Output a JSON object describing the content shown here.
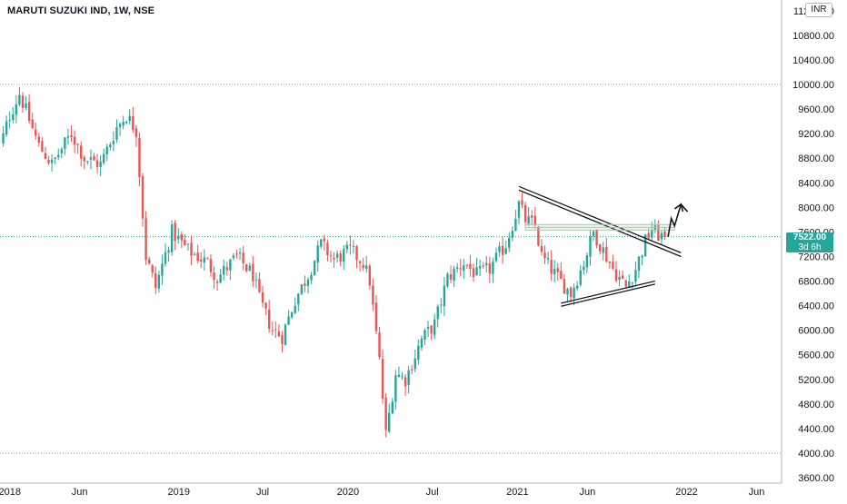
{
  "header": {
    "title": "MARUTI SUZUKI IND, 1W, NSE",
    "currency": "INR"
  },
  "price_label": {
    "value": "7522.00",
    "countdown": "3d 6h"
  },
  "colors": {
    "up": "#26a69a",
    "down": "#ef5350",
    "dotted_line": "#9598a1",
    "axis_line": "#b2b5be",
    "drawings": "#131722",
    "zone": "#a7c9a7"
  },
  "chart_data": {
    "type": "candlestick",
    "symbol": "MARUTI SUZUKI IND",
    "interval": "1W",
    "exchange": "NSE",
    "ylim": [
      3500,
      11200
    ],
    "y_ticks": [
      "11200.00",
      "10800.00",
      "10400.00",
      "10000.00",
      "9600.00",
      "9200.00",
      "8800.00",
      "8400.00",
      "8000.00",
      "7600.00",
      "7200.00",
      "6800.00",
      "6400.00",
      "6000.00",
      "5600.00",
      "5200.00",
      "4800.00",
      "4400.00",
      "4000.00",
      "3600.00"
    ],
    "x_ticks": [
      "2018",
      "Jun",
      "2019",
      "Jul",
      "2020",
      "Jul",
      "2021",
      "Jun",
      "2022",
      "Jun"
    ],
    "x_tick_dates": [
      "2018-01-01",
      "2018-06-01",
      "2019-01-01",
      "2019-07-01",
      "2020-01-01",
      "2020-07-01",
      "2021-01-01",
      "2021-06-01",
      "2022-01-01",
      "2022-06-01"
    ],
    "x_range_dates": [
      "2017-12-11",
      "2022-07-25"
    ],
    "horizontal_levels": [
      10000,
      4000
    ],
    "last_price": 7522,
    "anchors": [
      [
        "2017-12-04",
        8800
      ],
      [
        "2018-01-01",
        9500
      ],
      [
        "2018-01-22",
        9850
      ],
      [
        "2018-03-05",
        9000
      ],
      [
        "2018-04-02",
        8700
      ],
      [
        "2018-05-14",
        9200
      ],
      [
        "2018-06-11",
        8800
      ],
      [
        "2018-07-16",
        8700
      ],
      [
        "2018-08-20",
        9300
      ],
      [
        "2018-09-10",
        9500
      ],
      [
        "2018-10-01",
        9250
      ],
      [
        "2018-10-22",
        7200
      ],
      [
        "2018-11-12",
        6700
      ],
      [
        "2018-12-17",
        7600
      ],
      [
        "2019-01-21",
        7300
      ],
      [
        "2019-03-04",
        7100
      ],
      [
        "2019-03-25",
        6850
      ],
      [
        "2019-05-06",
        7200
      ],
      [
        "2019-06-10",
        6900
      ],
      [
        "2019-06-24",
        6500
      ],
      [
        "2019-07-22",
        6000
      ],
      [
        "2019-08-12",
        5900
      ],
      [
        "2019-09-09",
        6500
      ],
      [
        "2019-10-07",
        6900
      ],
      [
        "2019-11-04",
        7400
      ],
      [
        "2019-12-02",
        7150
      ],
      [
        "2020-01-06",
        7300
      ],
      [
        "2020-02-03",
        7100
      ],
      [
        "2020-02-17",
        6800
      ],
      [
        "2020-03-09",
        5500
      ],
      [
        "2020-03-23",
        4300
      ],
      [
        "2020-04-13",
        5300
      ],
      [
        "2020-05-04",
        5200
      ],
      [
        "2020-06-08",
        5850
      ],
      [
        "2020-07-06",
        6100
      ],
      [
        "2020-08-03",
        6850
      ],
      [
        "2020-09-07",
        7100
      ],
      [
        "2020-10-05",
        6900
      ],
      [
        "2020-11-02",
        7000
      ],
      [
        "2020-12-07",
        7400
      ],
      [
        "2021-01-04",
        8050
      ],
      [
        "2021-01-18",
        7800
      ],
      [
        "2021-02-08",
        7700
      ],
      [
        "2021-02-22",
        7200
      ],
      [
        "2021-03-29",
        6850
      ],
      [
        "2021-04-26",
        6600
      ],
      [
        "2021-05-24",
        7100
      ],
      [
        "2021-06-14",
        7600
      ],
      [
        "2021-07-05",
        7300
      ],
      [
        "2021-07-26",
        7000
      ],
      [
        "2021-08-23",
        6700
      ],
      [
        "2021-09-13",
        7000
      ],
      [
        "2021-10-04",
        7450
      ],
      [
        "2021-10-18",
        7650
      ],
      [
        "2021-11-01",
        7550
      ],
      [
        "2021-11-15",
        7522
      ]
    ]
  }
}
